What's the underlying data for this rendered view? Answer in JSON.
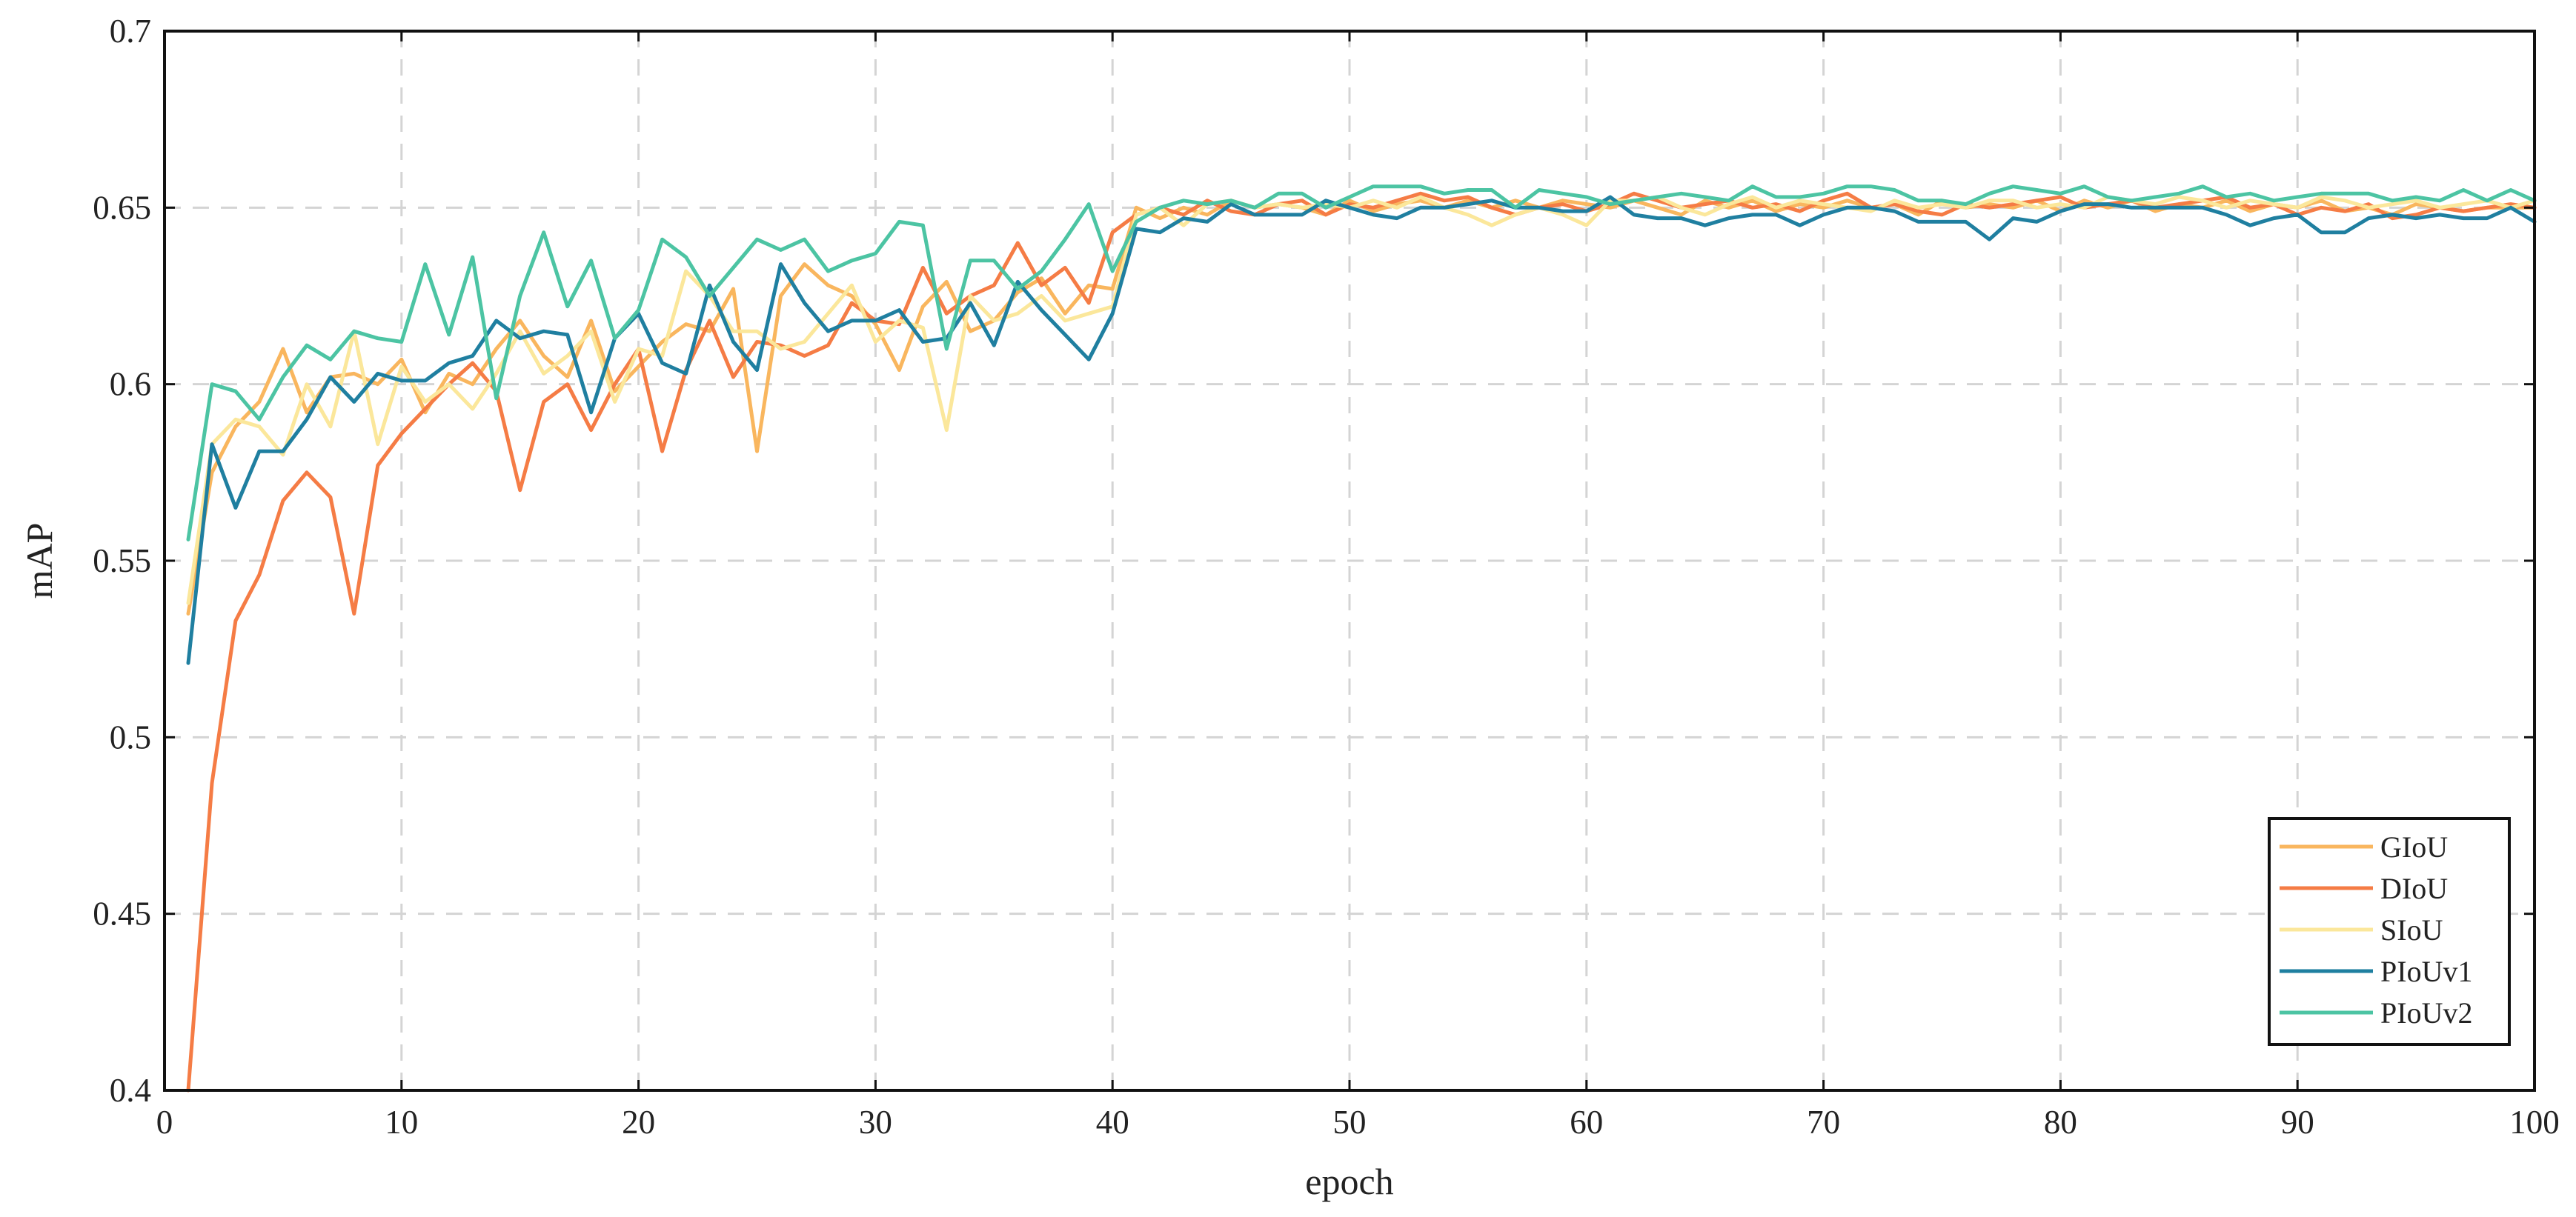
{
  "chart_data": {
    "type": "line",
    "title": "",
    "xlabel": "epoch",
    "ylabel": "mAP",
    "xlim": [
      0,
      100
    ],
    "ylim": [
      0.4,
      0.7
    ],
    "x_ticks": [
      0,
      10,
      20,
      30,
      40,
      50,
      60,
      70,
      80,
      90,
      100
    ],
    "y_ticks": [
      0.4,
      0.45,
      0.5,
      0.55,
      0.6,
      0.65,
      0.7
    ],
    "x_tick_labels": [
      "0",
      "10",
      "20",
      "30",
      "40",
      "50",
      "60",
      "70",
      "80",
      "90",
      "100"
    ],
    "y_tick_labels": [
      "0.4",
      "0.45",
      "0.5",
      "0.55",
      "0.6",
      "0.65",
      "0.7"
    ],
    "grid": true,
    "legend_position": "bottom-right",
    "x": [
      1,
      2,
      3,
      4,
      5,
      6,
      7,
      8,
      9,
      10,
      11,
      12,
      13,
      14,
      15,
      16,
      17,
      18,
      19,
      20,
      21,
      22,
      23,
      24,
      25,
      26,
      27,
      28,
      29,
      30,
      31,
      32,
      33,
      34,
      35,
      36,
      37,
      38,
      39,
      40,
      41,
      42,
      43,
      44,
      45,
      46,
      47,
      48,
      49,
      50,
      51,
      52,
      53,
      54,
      55,
      56,
      57,
      58,
      59,
      60,
      61,
      62,
      63,
      64,
      65,
      66,
      67,
      68,
      69,
      70,
      71,
      72,
      73,
      74,
      75,
      76,
      77,
      78,
      79,
      80,
      81,
      82,
      83,
      84,
      85,
      86,
      87,
      88,
      89,
      90,
      91,
      92,
      93,
      94,
      95,
      96,
      97,
      98,
      99,
      100
    ],
    "series": [
      {
        "name": "GIoU",
        "color": "#f9b65e",
        "values": [
          0.535,
          0.575,
          0.588,
          0.595,
          0.61,
          0.592,
          0.602,
          0.603,
          0.6,
          0.607,
          0.592,
          0.603,
          0.6,
          0.61,
          0.618,
          0.608,
          0.602,
          0.618,
          0.598,
          0.605,
          0.612,
          0.617,
          0.615,
          0.627,
          0.581,
          0.625,
          0.634,
          0.628,
          0.625,
          0.617,
          0.604,
          0.622,
          0.629,
          0.615,
          0.618,
          0.626,
          0.63,
          0.62,
          0.628,
          0.627,
          0.65,
          0.647,
          0.65,
          0.648,
          0.652,
          0.65,
          0.651,
          0.65,
          0.648,
          0.652,
          0.649,
          0.651,
          0.652,
          0.65,
          0.652,
          0.65,
          0.652,
          0.65,
          0.652,
          0.651,
          0.65,
          0.652,
          0.65,
          0.648,
          0.652,
          0.65,
          0.652,
          0.649,
          0.651,
          0.65,
          0.652,
          0.65,
          0.651,
          0.648,
          0.652,
          0.65,
          0.651,
          0.65,
          0.652,
          0.649,
          0.652,
          0.65,
          0.652,
          0.649,
          0.651,
          0.65,
          0.652,
          0.649,
          0.651,
          0.65,
          0.652,
          0.649,
          0.65,
          0.648,
          0.651,
          0.65,
          0.649,
          0.65,
          0.65,
          0.65
        ]
      },
      {
        "name": "DIoU",
        "color": "#f57c45",
        "values": [
          0.4,
          0.487,
          0.533,
          0.546,
          0.567,
          0.575,
          0.568,
          0.535,
          0.577,
          0.586,
          0.593,
          0.6,
          0.606,
          0.598,
          0.57,
          0.595,
          0.6,
          0.587,
          0.6,
          0.61,
          0.581,
          0.604,
          0.618,
          0.602,
          0.612,
          0.611,
          0.608,
          0.611,
          0.623,
          0.618,
          0.617,
          0.633,
          0.62,
          0.625,
          0.628,
          0.64,
          0.628,
          0.633,
          0.623,
          0.643,
          0.648,
          0.65,
          0.648,
          0.652,
          0.649,
          0.648,
          0.651,
          0.652,
          0.648,
          0.651,
          0.65,
          0.652,
          0.654,
          0.652,
          0.653,
          0.65,
          0.648,
          0.65,
          0.651,
          0.649,
          0.651,
          0.654,
          0.652,
          0.65,
          0.651,
          0.652,
          0.65,
          0.651,
          0.649,
          0.652,
          0.654,
          0.65,
          0.651,
          0.649,
          0.648,
          0.651,
          0.65,
          0.651,
          0.652,
          0.653,
          0.65,
          0.651,
          0.652,
          0.65,
          0.651,
          0.652,
          0.653,
          0.65,
          0.651,
          0.648,
          0.65,
          0.649,
          0.651,
          0.647,
          0.648,
          0.65,
          0.649,
          0.65,
          0.651,
          0.65
        ]
      },
      {
        "name": "SIoU",
        "color": "#fbe79b",
        "values": [
          0.538,
          0.583,
          0.59,
          0.588,
          0.58,
          0.6,
          0.588,
          0.615,
          0.583,
          0.605,
          0.595,
          0.6,
          0.593,
          0.603,
          0.615,
          0.603,
          0.608,
          0.615,
          0.595,
          0.61,
          0.608,
          0.632,
          0.625,
          0.615,
          0.615,
          0.61,
          0.612,
          0.62,
          0.628,
          0.612,
          0.618,
          0.616,
          0.587,
          0.625,
          0.618,
          0.62,
          0.625,
          0.618,
          0.62,
          0.622,
          0.648,
          0.65,
          0.645,
          0.651,
          0.652,
          0.65,
          0.651,
          0.65,
          0.651,
          0.65,
          0.652,
          0.65,
          0.653,
          0.65,
          0.648,
          0.645,
          0.648,
          0.65,
          0.648,
          0.645,
          0.652,
          0.652,
          0.653,
          0.65,
          0.648,
          0.651,
          0.653,
          0.65,
          0.652,
          0.651,
          0.65,
          0.649,
          0.652,
          0.65,
          0.651,
          0.65,
          0.652,
          0.652,
          0.65,
          0.651,
          0.65,
          0.653,
          0.652,
          0.651,
          0.653,
          0.652,
          0.65,
          0.652,
          0.651,
          0.65,
          0.653,
          0.652,
          0.65,
          0.651,
          0.652,
          0.65,
          0.651,
          0.652,
          0.65,
          0.652
        ]
      },
      {
        "name": "PIoUv1",
        "color": "#1f7fa0",
        "values": [
          0.521,
          0.583,
          0.565,
          0.581,
          0.581,
          0.59,
          0.602,
          0.595,
          0.603,
          0.601,
          0.601,
          0.606,
          0.608,
          0.618,
          0.613,
          0.615,
          0.614,
          0.592,
          0.613,
          0.62,
          0.606,
          0.603,
          0.628,
          0.612,
          0.604,
          0.634,
          0.623,
          0.615,
          0.618,
          0.618,
          0.621,
          0.612,
          0.613,
          0.623,
          0.611,
          0.629,
          0.621,
          0.614,
          0.607,
          0.62,
          0.644,
          0.643,
          0.647,
          0.646,
          0.651,
          0.648,
          0.648,
          0.648,
          0.652,
          0.65,
          0.648,
          0.647,
          0.65,
          0.65,
          0.651,
          0.652,
          0.65,
          0.65,
          0.649,
          0.649,
          0.653,
          0.648,
          0.647,
          0.647,
          0.645,
          0.647,
          0.648,
          0.648,
          0.645,
          0.648,
          0.65,
          0.65,
          0.649,
          0.646,
          0.646,
          0.646,
          0.641,
          0.647,
          0.646,
          0.649,
          0.651,
          0.651,
          0.65,
          0.65,
          0.65,
          0.65,
          0.648,
          0.645,
          0.647,
          0.648,
          0.643,
          0.643,
          0.647,
          0.648,
          0.647,
          0.648,
          0.647,
          0.647,
          0.65,
          0.646
        ]
      },
      {
        "name": "PIoUv2",
        "color": "#4cc4a3",
        "values": [
          0.556,
          0.6,
          0.598,
          0.59,
          0.602,
          0.611,
          0.607,
          0.615,
          0.613,
          0.612,
          0.634,
          0.614,
          0.636,
          0.596,
          0.625,
          0.643,
          0.622,
          0.635,
          0.613,
          0.621,
          0.641,
          0.636,
          0.625,
          0.633,
          0.641,
          0.638,
          0.641,
          0.632,
          0.635,
          0.637,
          0.646,
          0.645,
          0.61,
          0.635,
          0.635,
          0.627,
          0.632,
          0.641,
          0.651,
          0.632,
          0.646,
          0.65,
          0.652,
          0.651,
          0.652,
          0.65,
          0.654,
          0.654,
          0.65,
          0.653,
          0.656,
          0.656,
          0.656,
          0.654,
          0.655,
          0.655,
          0.65,
          0.655,
          0.654,
          0.653,
          0.651,
          0.652,
          0.653,
          0.654,
          0.653,
          0.652,
          0.656,
          0.653,
          0.653,
          0.654,
          0.656,
          0.656,
          0.655,
          0.652,
          0.652,
          0.651,
          0.654,
          0.656,
          0.655,
          0.654,
          0.656,
          0.653,
          0.652,
          0.653,
          0.654,
          0.656,
          0.653,
          0.654,
          0.652,
          0.653,
          0.654,
          0.654,
          0.654,
          0.652,
          0.653,
          0.652,
          0.655,
          0.652,
          0.655,
          0.652
        ]
      }
    ]
  }
}
